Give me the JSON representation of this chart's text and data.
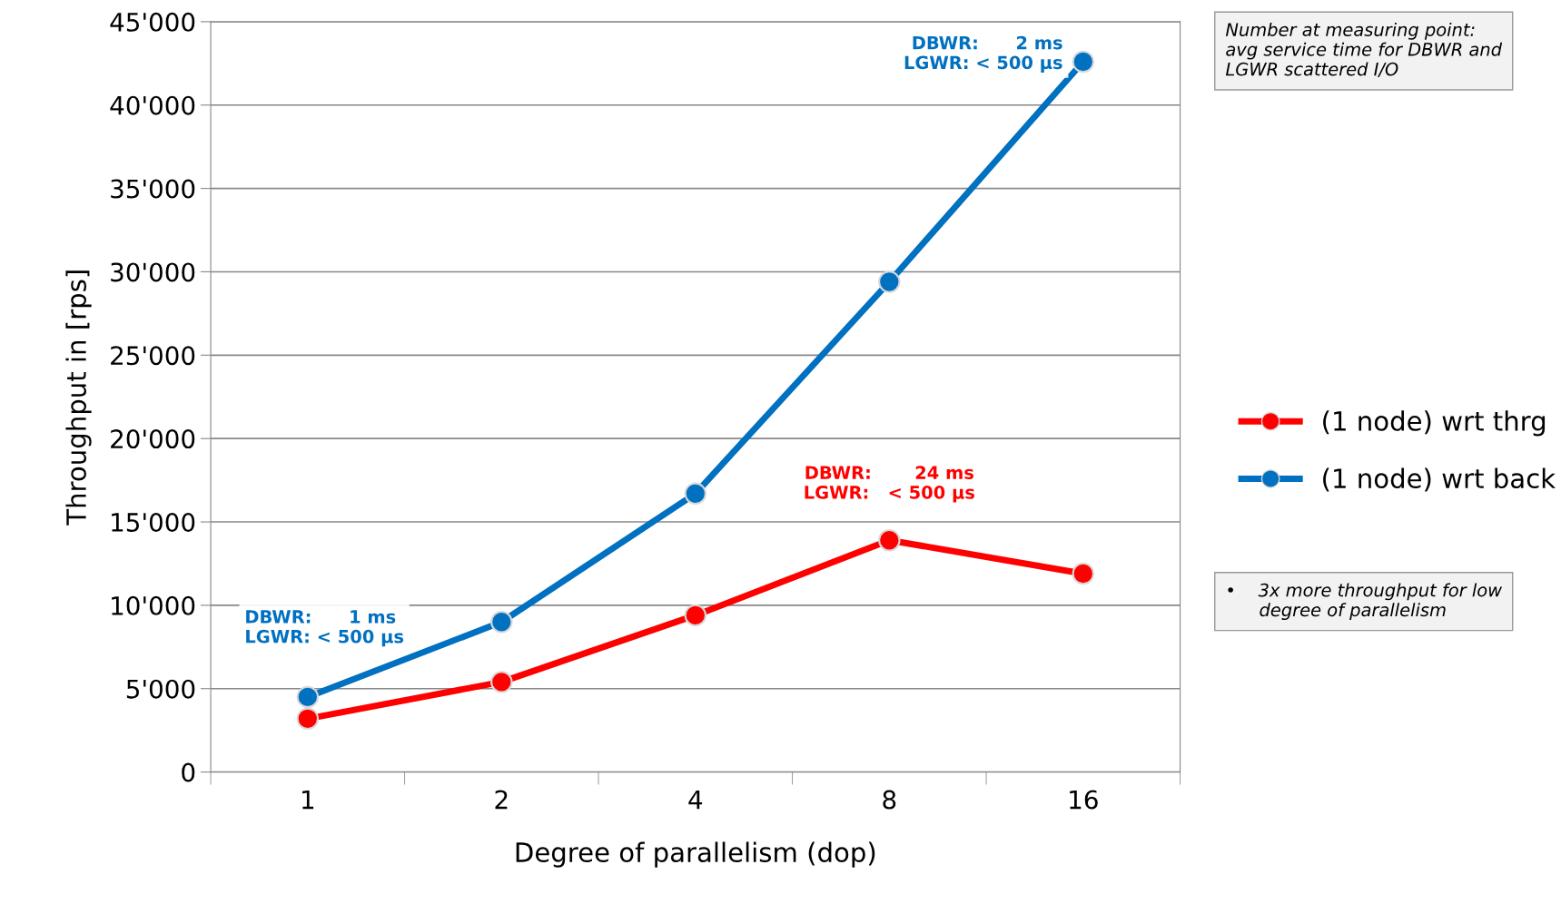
{
  "chart_data": {
    "type": "line",
    "xlabel": "Degree of parallelism (dop)",
    "ylabel": "Throughput in [rps]",
    "categories": [
      "1",
      "2",
      "4",
      "8",
      "16"
    ],
    "series": [
      {
        "name": "(1 node) wrt thrg",
        "color": "#ff0000",
        "values": [
          3200,
          5400,
          9400,
          13900,
          11900
        ]
      },
      {
        "name": "(1 node) wrt back",
        "color": "#0070c0",
        "values": [
          4500,
          9000,
          16700,
          29400,
          42600
        ]
      }
    ],
    "ylim": [
      0,
      45000
    ],
    "yticks": [
      {
        "value": 0,
        "label": "0"
      },
      {
        "value": 5000,
        "label": "5'000"
      },
      {
        "value": 10000,
        "label": "10'000"
      },
      {
        "value": 15000,
        "label": "15'000"
      },
      {
        "value": 20000,
        "label": "20'000"
      },
      {
        "value": 25000,
        "label": "25'000"
      },
      {
        "value": 30000,
        "label": "30'000"
      },
      {
        "value": 35000,
        "label": "35'000"
      },
      {
        "value": 40000,
        "label": "40'000"
      },
      {
        "value": 45000,
        "label": "45'000"
      }
    ],
    "grid": "y",
    "legend": "right",
    "marker": "circle",
    "line_style": "solid",
    "annotations": [
      {
        "text": "DBWR:      2 ms\nLGWR: < 500 µs",
        "x": "16",
        "y": 42600
      },
      {
        "text": "DBWR:       24 ms\nLGWR:   < 500 µs",
        "x": "8",
        "y": 13900
      },
      {
        "text": "DBWR:      1 ms\nLGWR: < 500 µs",
        "x": "1",
        "y": 4500
      },
      "Number at measuring point:\navg service time for DBWR and\nLGWR scattered I/O",
      "•    3x more throughput for low\n      degree of parallelism"
    ]
  }
}
